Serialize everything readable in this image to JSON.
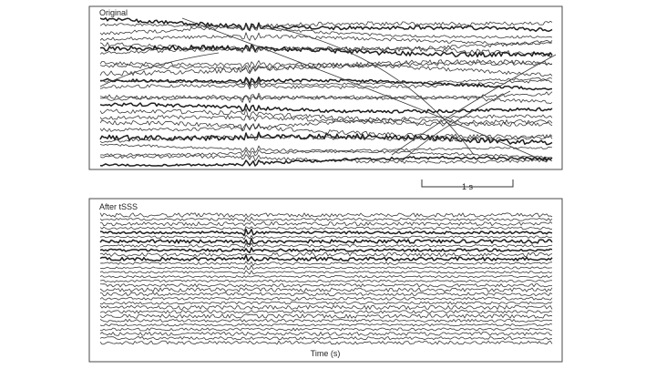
{
  "chart_data": [
    {
      "type": "line",
      "panel": "Original",
      "title": "Original",
      "n_channels": 26,
      "traces": "multi-channel MEG-like waveforms with large slow drifts and crossing artifacts",
      "scale_bar_label": "1 s",
      "grid": false
    },
    {
      "type": "line",
      "panel": "After tSSS",
      "title": "After tSSS",
      "n_channels": 30,
      "traces": "multi-channel waveforms, evenly spaced and flat after cleaning",
      "xlabel": "Time (s)",
      "grid": false
    }
  ]
}
